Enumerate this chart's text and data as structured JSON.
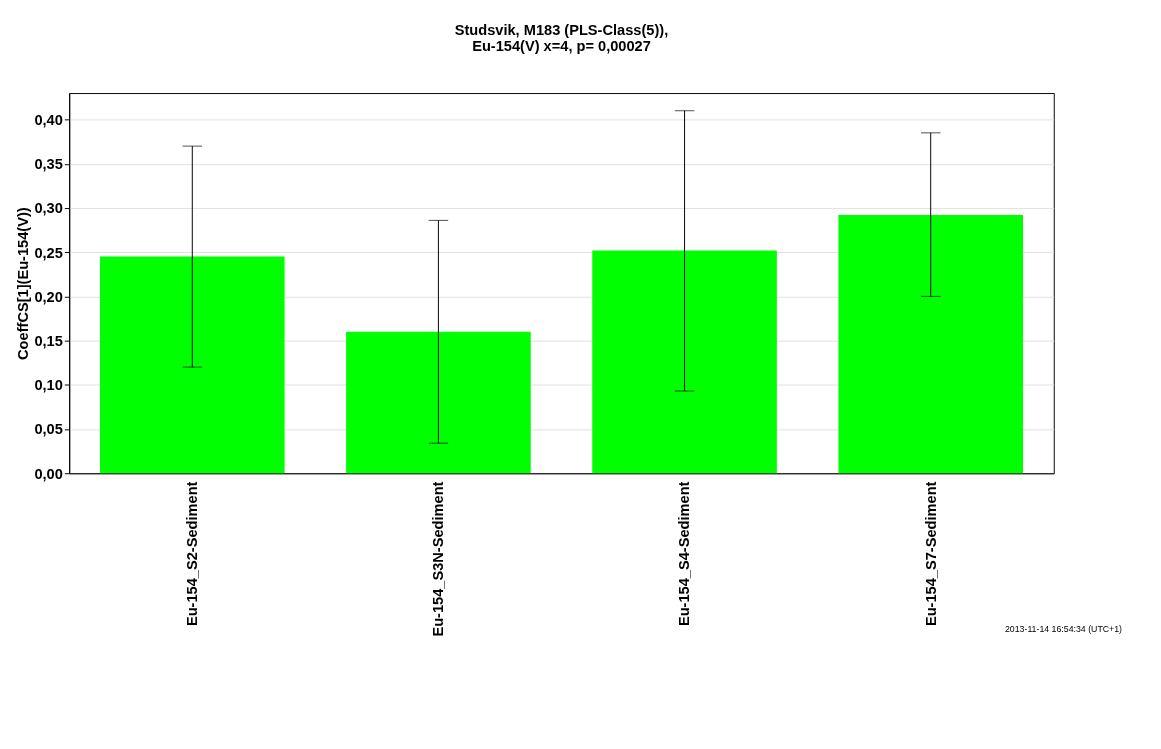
{
  "chart_data": {
    "type": "bar",
    "title": [
      "Studsvik, M183 (PLS-Class(5)),",
      "Eu-154(V) x=4, p= 0,00027"
    ],
    "ylabel": "CoeffCS[1](Eu-154(V))",
    "categories": [
      "Eu-154_S2-Sediment",
      "Eu-154_S3N-Sediment",
      "Eu-154_S4-Sediment",
      "Eu-154_S7-Sediment"
    ],
    "values": [
      0.245,
      0.16,
      0.252,
      0.292
    ],
    "color": "#00ff00",
    "errors": [
      [
        0.12,
        0.37
      ],
      [
        0.034,
        0.286
      ],
      [
        0.093,
        0.41
      ],
      [
        0.2,
        0.385
      ]
    ],
    "ylim": [
      0,
      0.43
    ],
    "yticks": [
      {
        "value": 0,
        "label": "0,00"
      },
      {
        "value": 0.05,
        "label": "0,05"
      },
      {
        "value": 0.1,
        "label": "0,10"
      },
      {
        "value": 0.15,
        "label": "0,15"
      },
      {
        "value": 0.2,
        "label": "0,20"
      },
      {
        "value": 0.25,
        "label": "0,25"
      },
      {
        "value": 0.3,
        "label": "0,30"
      },
      {
        "value": 0.35,
        "label": "0,35"
      },
      {
        "value": 0.4,
        "label": "0,40"
      }
    ],
    "grid": "y",
    "annotations": [
      "2013-11-14 16:54:34 (UTC+1)"
    ]
  }
}
